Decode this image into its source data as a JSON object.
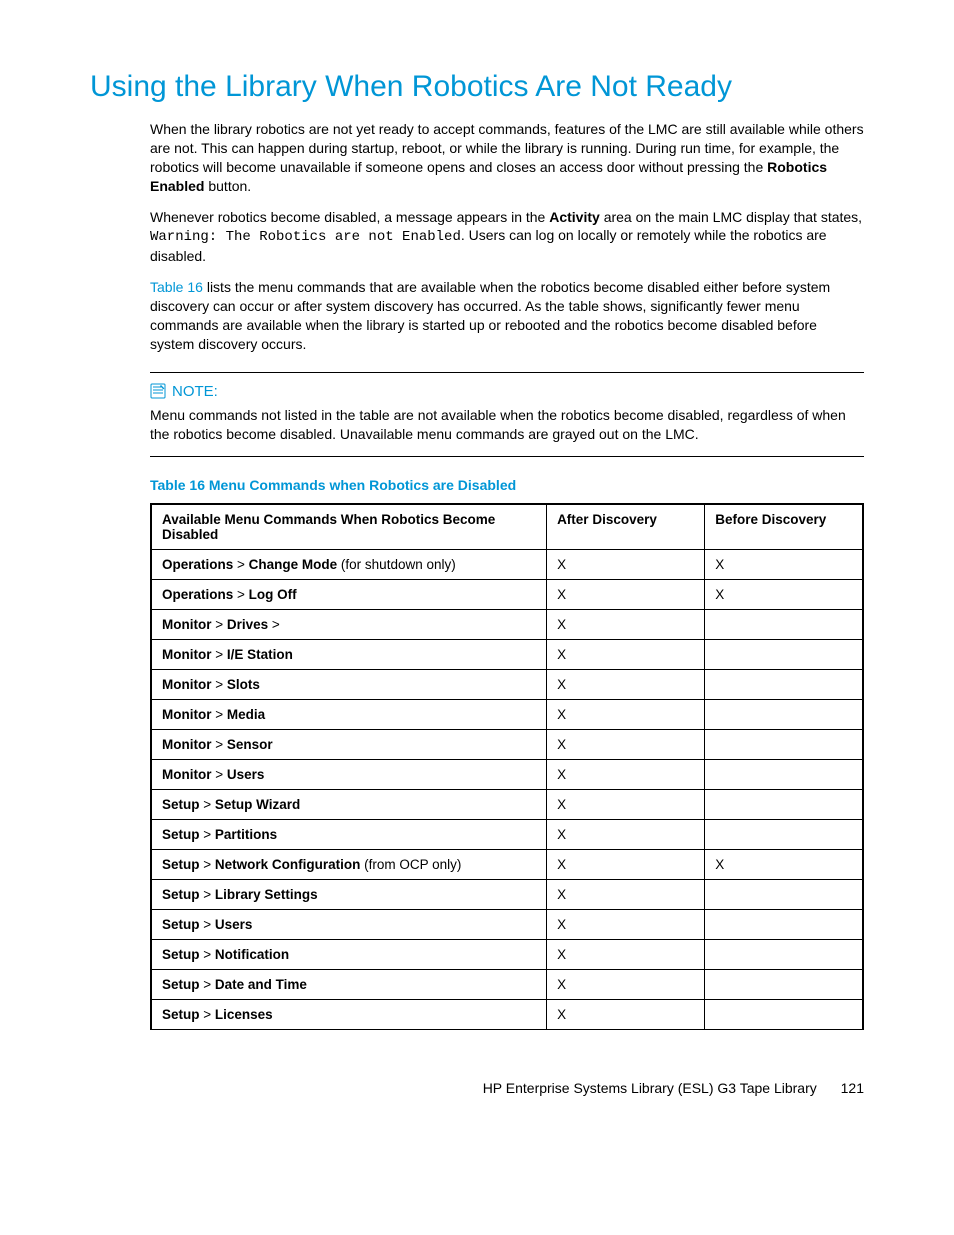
{
  "title": "Using the Library When Robotics Are Not Ready",
  "para1_a": "When the library robotics are not yet ready to accept commands, features of the LMC are still available while others are not. This can happen during startup, reboot, or while the library is running. During run time, for example, the robotics will become unavailable if someone opens and closes an access door without pressing the ",
  "para1_bold": "Robotics Enabled",
  "para1_b": " button.",
  "para2_a": "Whenever robotics become disabled, a message appears in the ",
  "para2_bold": "Activity",
  "para2_b": " area on the main LMC display that states, ",
  "para2_mono": "Warning: The Robotics are not Enabled",
  "para2_c": ". Users can log on locally or remotely while the robotics are disabled.",
  "para3_link": "Table 16",
  "para3_rest": " lists the menu commands that are available when the robotics become disabled either before system discovery can occur or after system discovery has occurred. As the table shows, significantly fewer menu commands are available when the library is started up or rebooted and the robotics become disabled before system discovery occurs.",
  "note_label": "NOTE:",
  "note_text": "Menu commands not listed in the table are not available when the robotics become disabled, regardless of when the robotics become disabled. Unavailable menu commands are grayed out on the LMC.",
  "table_caption": "Table 16 Menu Commands when Robotics are Disabled",
  "table": {
    "headers": [
      "Available Menu Commands When Robotics Become Disabled",
      "After Discovery",
      "Before Discovery"
    ],
    "rows": [
      {
        "cmd_html": "<b>Operations</b> > <b>Change Mode</b> (for shutdown only)",
        "after": "X",
        "before": "X"
      },
      {
        "cmd_html": "<b>Operations</b> > <b>Log Off</b>",
        "after": "X",
        "before": "X"
      },
      {
        "cmd_html": "<b>Monitor</b> > <b>Drives</b> >",
        "after": "X",
        "before": ""
      },
      {
        "cmd_html": "<b>Monitor</b> > <b>I/E Station</b>",
        "after": "X",
        "before": ""
      },
      {
        "cmd_html": "<b>Monitor</b> > <b>Slots</b>",
        "after": "X",
        "before": ""
      },
      {
        "cmd_html": "<b>Monitor</b> > <b>Media</b>",
        "after": "X",
        "before": ""
      },
      {
        "cmd_html": "<b>Monitor</b> > <b>Sensor</b>",
        "after": "X",
        "before": ""
      },
      {
        "cmd_html": "<b>Monitor</b> > <b>Users</b>",
        "after": "X",
        "before": ""
      },
      {
        "cmd_html": "<b>Setup</b> > <b>Setup Wizard</b>",
        "after": "X",
        "before": ""
      },
      {
        "cmd_html": "<b>Setup</b> > <b>Partitions</b>",
        "after": "X",
        "before": ""
      },
      {
        "cmd_html": "<b>Setup</b> > <b>Network Configuration</b> (from OCP only)",
        "after": "X",
        "before": "X"
      },
      {
        "cmd_html": "<b>Setup</b> > <b>Library Settings</b>",
        "after": "X",
        "before": ""
      },
      {
        "cmd_html": "<b>Setup</b> > <b>Users</b>",
        "after": "X",
        "before": ""
      },
      {
        "cmd_html": "<b>Setup</b> > <b>Notification</b>",
        "after": "X",
        "before": ""
      },
      {
        "cmd_html": "<b>Setup</b> > <b>Date and Time</b>",
        "after": "X",
        "before": ""
      },
      {
        "cmd_html": "<b>Setup</b> > <b>Licenses</b>",
        "after": "X",
        "before": ""
      }
    ]
  },
  "footer_text": "HP Enterprise Systems Library (ESL) G3 Tape Library",
  "page_number": "121",
  "colors": {
    "accent": "#0096d6",
    "text": "#000000",
    "background": "#ffffff"
  }
}
